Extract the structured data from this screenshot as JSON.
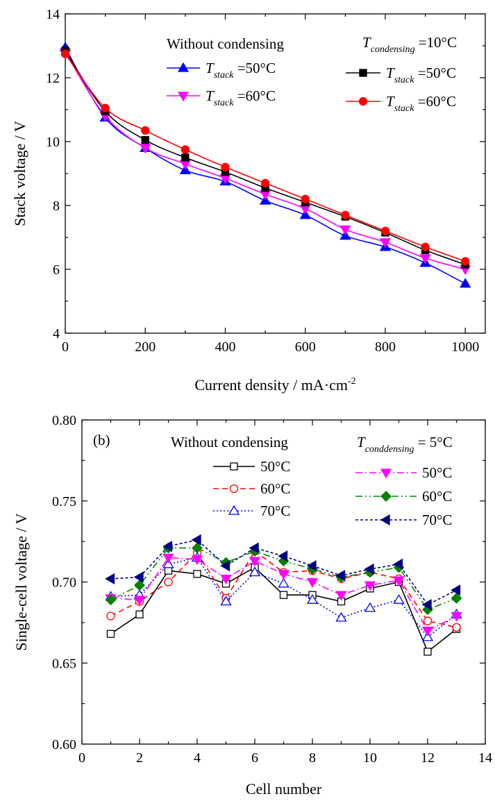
{
  "chart_data": [
    {
      "type": "line",
      "panel_label": "",
      "xlabel": "Current density / mA·cm",
      "xlabel_superscript": "-2",
      "ylabel": "Stack voltage / V",
      "xlim": [
        0,
        1050
      ],
      "ylim": [
        4,
        14
      ],
      "xticks": [
        0,
        200,
        400,
        600,
        800,
        1000
      ],
      "yticks": [
        4,
        6,
        8,
        10,
        12,
        14
      ],
      "legend_groups": [
        {
          "heading": "Without condensing",
          "heading_parts": null
        },
        {
          "heading": "",
          "heading_parts": {
            "symbol": "T",
            "subscript": "condensing",
            "rest": " =10°C"
          }
        }
      ],
      "x": [
        0,
        100,
        200,
        300,
        400,
        500,
        600,
        700,
        800,
        900,
        1000
      ],
      "series": [
        {
          "name": "=50°C",
          "symbol": "T",
          "subscript": "stack",
          "group": 0,
          "color": "#0000ff",
          "marker": "triangle-up",
          "dash": "",
          "values": [
            12.95,
            10.75,
            9.8,
            9.1,
            8.75,
            8.15,
            7.7,
            7.05,
            6.7,
            6.2,
            5.55
          ]
        },
        {
          "name": "=60°C",
          "symbol": "T",
          "subscript": "stack",
          "group": 0,
          "color": "#ff00ff",
          "marker": "triangle-down",
          "dash": "",
          "values": [
            12.8,
            10.8,
            9.8,
            9.3,
            8.85,
            8.35,
            7.9,
            7.25,
            6.85,
            6.35,
            6.0
          ]
        },
        {
          "name": "=50°C",
          "symbol": "T",
          "subscript": "stack",
          "group": 1,
          "color": "#000000",
          "marker": "square",
          "dash": "",
          "values": [
            12.85,
            10.95,
            10.05,
            9.5,
            9.05,
            8.55,
            8.1,
            7.65,
            7.15,
            6.6,
            6.15
          ]
        },
        {
          "name": "=60°C",
          "symbol": "T",
          "subscript": "stack",
          "group": 1,
          "color": "#ff0000",
          "marker": "circle",
          "dash": "",
          "values": [
            12.75,
            11.05,
            10.35,
            9.75,
            9.2,
            8.7,
            8.2,
            7.7,
            7.2,
            6.7,
            6.25
          ]
        }
      ]
    },
    {
      "type": "line",
      "panel_label": "(b)",
      "xlabel": "Cell number",
      "ylabel": "Single-cell voltage / V",
      "xlim": [
        0,
        14
      ],
      "ylim": [
        0.6,
        0.8
      ],
      "xticks": [
        0,
        2,
        4,
        6,
        8,
        10,
        12,
        14
      ],
      "yticks": [
        0.6,
        0.65,
        0.7,
        0.75,
        0.8
      ],
      "legend_groups": [
        {
          "heading": "Without condensing",
          "heading_parts": null
        },
        {
          "heading": "",
          "heading_parts": {
            "symbol": "T",
            "subscript": "conddensing",
            "rest": " = 5°C"
          }
        }
      ],
      "x": [
        1,
        2,
        3,
        4,
        5,
        6,
        7,
        8,
        9,
        10,
        11,
        12,
        13
      ],
      "series": [
        {
          "name": "50°C",
          "group": 0,
          "color": "#000000",
          "marker": "square-open",
          "dash": "",
          "values": [
            0.668,
            0.68,
            0.707,
            0.705,
            0.699,
            0.709,
            0.692,
            0.692,
            0.688,
            0.696,
            0.7,
            0.657,
            0.671
          ]
        },
        {
          "name": "60°C",
          "group": 0,
          "color": "#ff0000",
          "marker": "circle-open",
          "dash": "8,5",
          "values": [
            0.679,
            0.688,
            0.7,
            0.718,
            0.69,
            0.719,
            0.706,
            0.707,
            0.702,
            0.706,
            0.702,
            0.676,
            0.672
          ]
        },
        {
          "name": "70°C",
          "group": 0,
          "color": "#0000ff",
          "marker": "triangle-up-open",
          "dash": "2,3",
          "values": [
            0.691,
            0.692,
            0.711,
            0.715,
            0.688,
            0.706,
            0.699,
            0.689,
            0.678,
            0.684,
            0.689,
            0.666,
            0.68
          ]
        },
        {
          "name": "50°C",
          "group": 1,
          "color": "#ff00ff",
          "marker": "triangle-down",
          "dash": "10,4,2,4",
          "values": [
            0.69,
            0.689,
            0.715,
            0.714,
            0.702,
            0.713,
            0.705,
            0.7,
            0.692,
            0.698,
            0.701,
            0.67,
            0.679
          ]
        },
        {
          "name": "60°C",
          "group": 1,
          "color": "#008000",
          "marker": "diamond",
          "dash": "10,4,2,4,2,4",
          "values": [
            0.689,
            0.698,
            0.721,
            0.721,
            0.712,
            0.719,
            0.713,
            0.708,
            0.703,
            0.706,
            0.709,
            0.683,
            0.69
          ]
        },
        {
          "name": "70°C",
          "group": 1,
          "color": "#000080",
          "marker": "triangle-left",
          "dash": "4,3",
          "values": [
            0.702,
            0.703,
            0.722,
            0.726,
            0.71,
            0.721,
            0.716,
            0.71,
            0.704,
            0.708,
            0.711,
            0.686,
            0.695
          ]
        }
      ]
    }
  ]
}
